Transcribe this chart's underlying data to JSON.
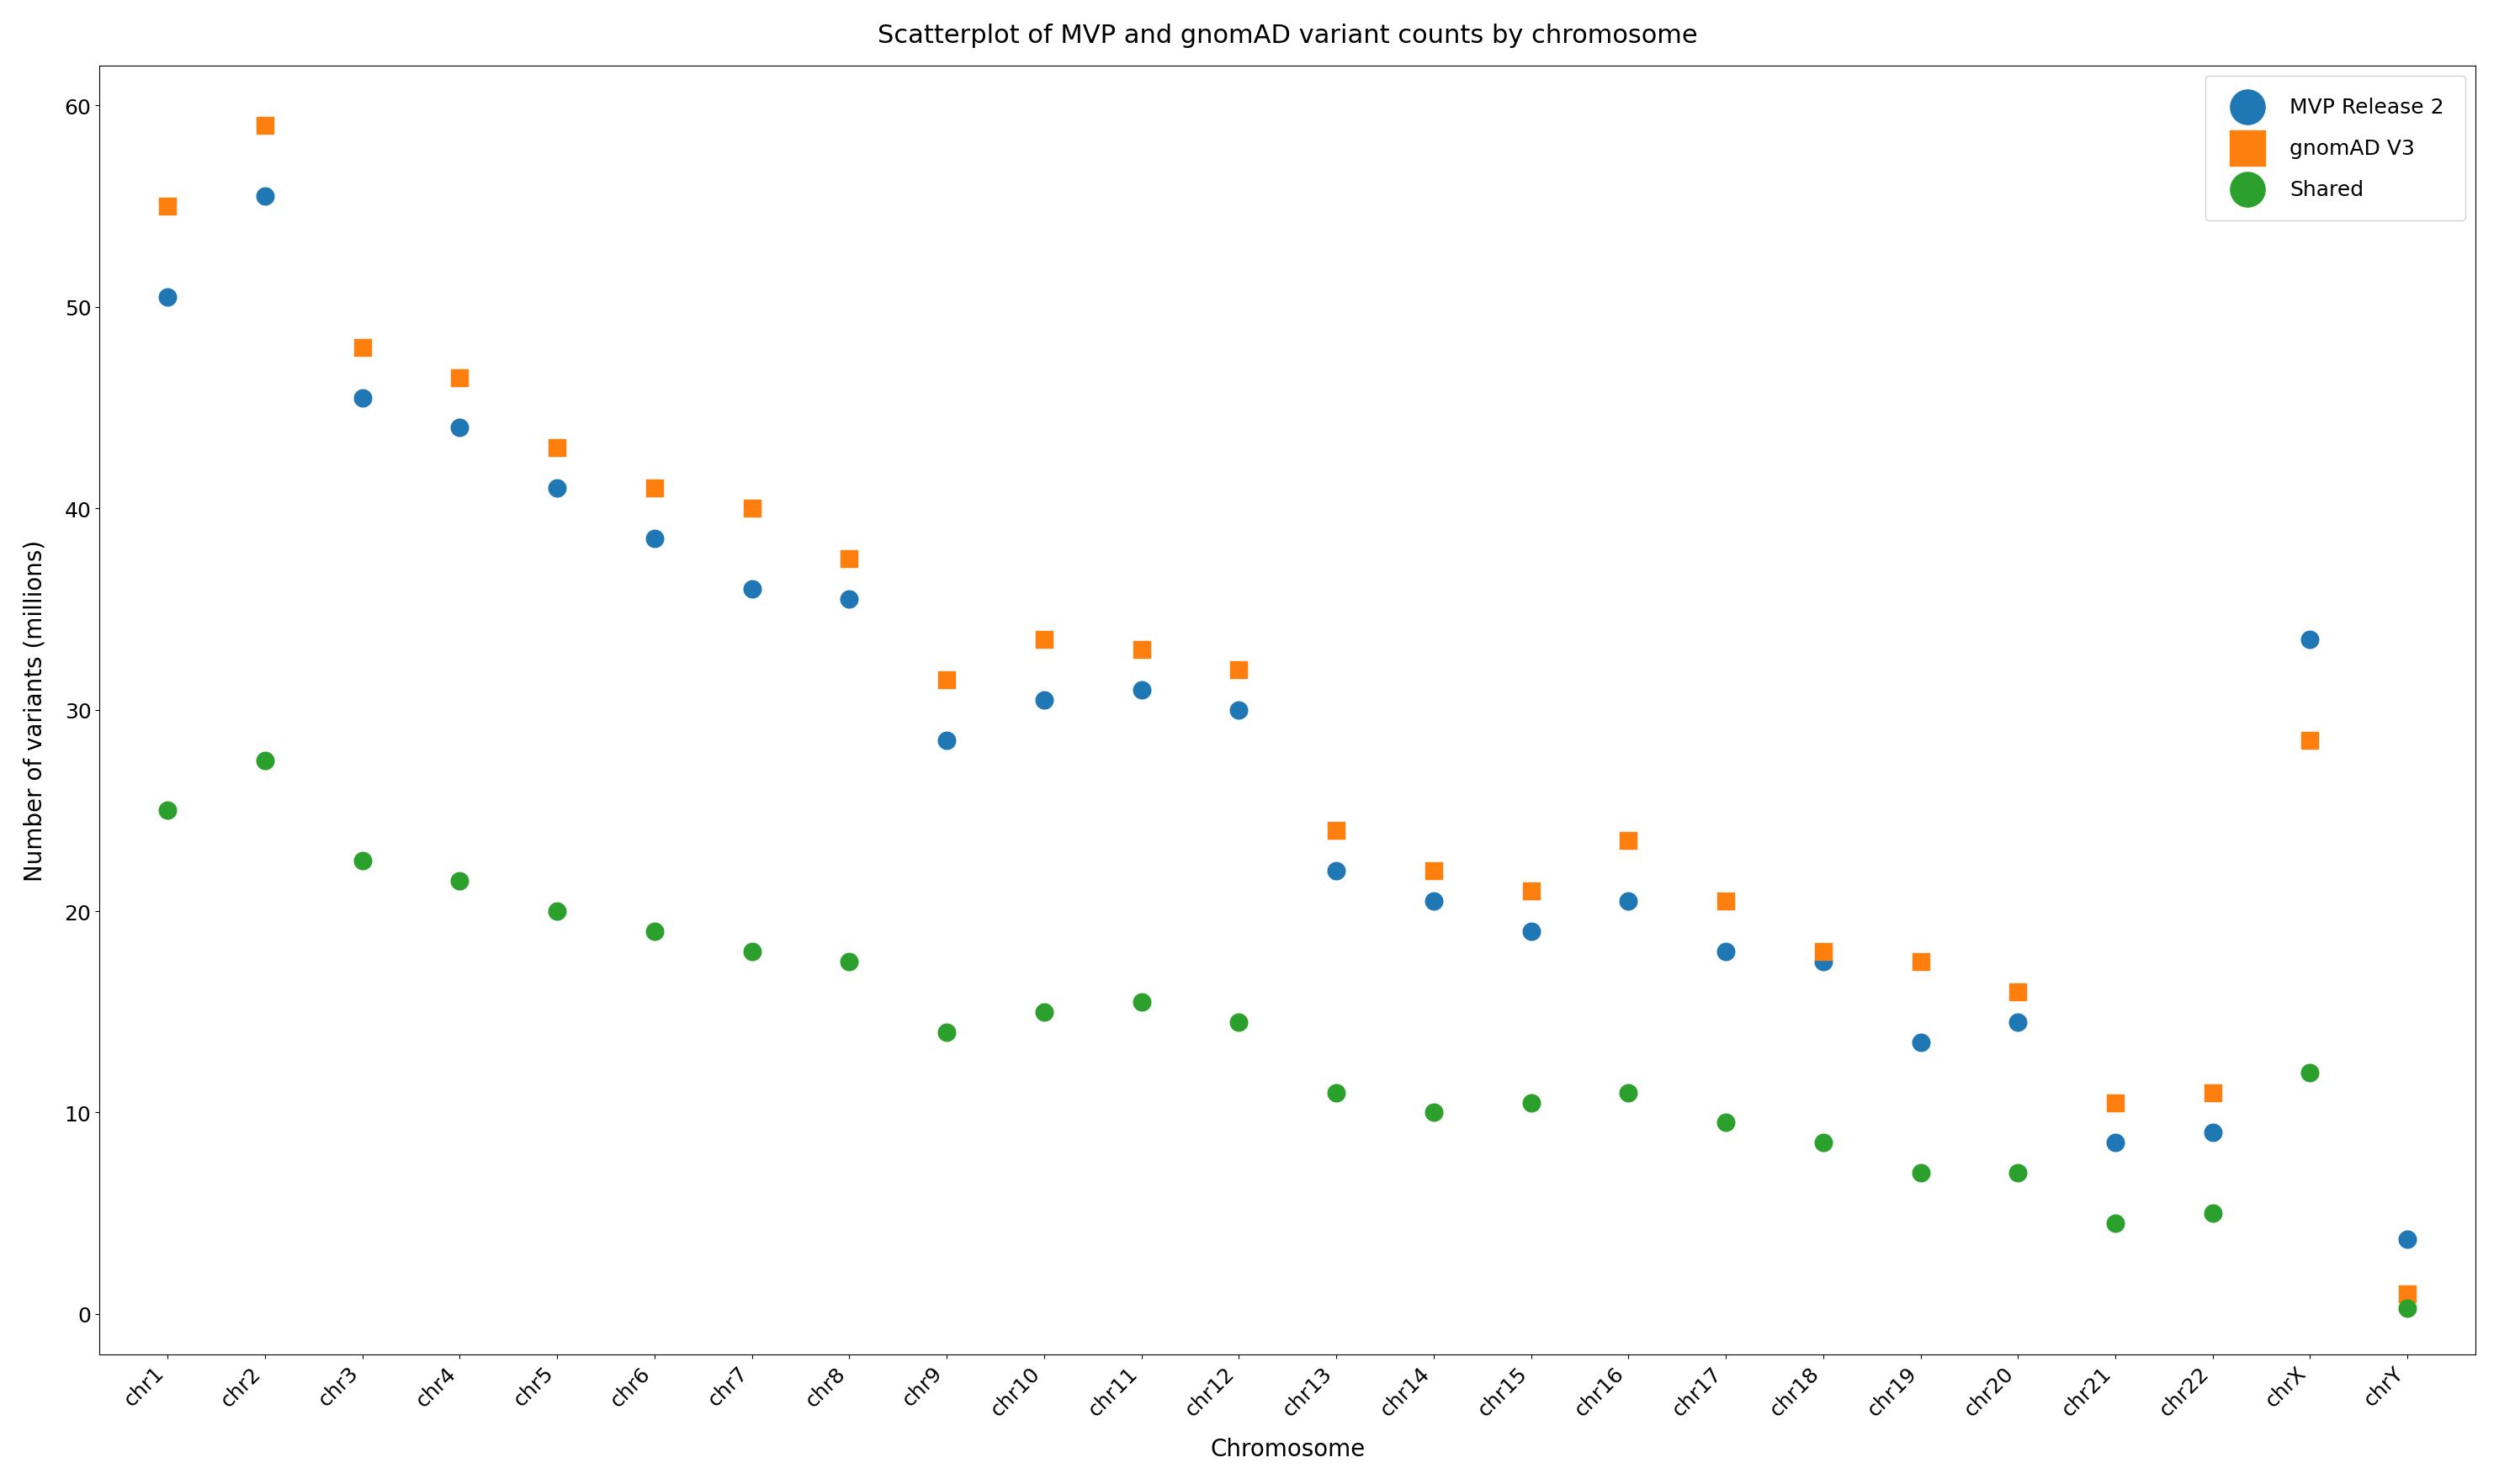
{
  "chromosomes": [
    "chr1",
    "chr2",
    "chr3",
    "chr4",
    "chr5",
    "chr6",
    "chr7",
    "chr8",
    "chr9",
    "chr10",
    "chr11",
    "chr12",
    "chr13",
    "chr14",
    "chr15",
    "chr16",
    "chr17",
    "chr18",
    "chr19",
    "chr20",
    "chr21",
    "chr22",
    "chrX",
    "chrY"
  ],
  "mvp": [
    50.5,
    55.5,
    45.5,
    44.0,
    41.0,
    38.5,
    36.0,
    35.5,
    28.5,
    30.5,
    31.0,
    30.0,
    22.0,
    20.5,
    19.0,
    20.5,
    18.0,
    17.5,
    13.5,
    14.5,
    8.5,
    9.0,
    33.5,
    3.7
  ],
  "gnomad": [
    55.0,
    59.0,
    48.0,
    46.5,
    43.0,
    41.0,
    40.0,
    37.5,
    31.5,
    33.5,
    33.0,
    32.0,
    24.0,
    22.0,
    21.0,
    23.5,
    20.5,
    18.0,
    17.5,
    16.0,
    10.5,
    11.0,
    28.5,
    1.0
  ],
  "shared": [
    25.0,
    27.5,
    22.5,
    21.5,
    20.0,
    19.0,
    18.0,
    17.5,
    14.0,
    15.0,
    15.5,
    14.5,
    11.0,
    10.0,
    10.5,
    11.0,
    9.5,
    8.5,
    7.0,
    7.0,
    4.5,
    5.0,
    12.0,
    0.3
  ],
  "mvp_color": "#1f77b4",
  "gnomad_color": "#ff7f0e",
  "shared_color": "#2ca02c",
  "title": "Scatterplot of MVP and gnomAD variant counts by chromosome",
  "xlabel": "Chromosome",
  "ylabel": "Number of variants (millions)",
  "ylim": [
    -2,
    62
  ],
  "yticks": [
    0,
    10,
    20,
    30,
    40,
    50,
    60
  ],
  "mvp_label": "MVP Release 2",
  "gnomad_label": "gnomAD V3",
  "shared_label": "Shared",
  "marker_size": 220,
  "title_fontsize": 22,
  "label_fontsize": 20,
  "tick_fontsize": 18,
  "legend_fontsize": 18
}
